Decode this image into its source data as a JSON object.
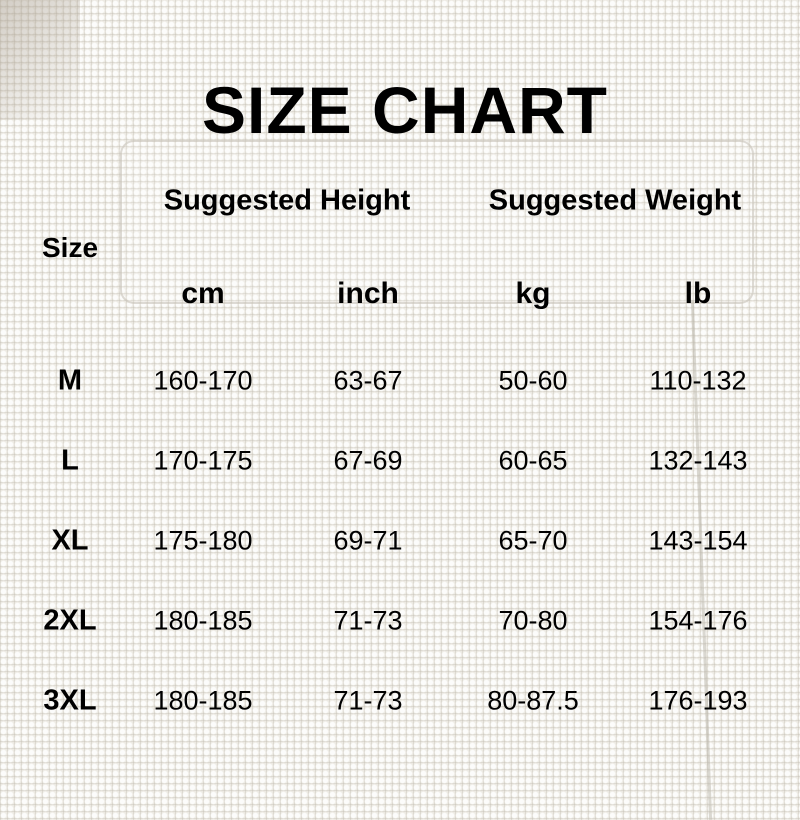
{
  "title": "SIZE CHART",
  "headers": {
    "size": "Size",
    "height_group": "Suggested Height",
    "weight_group": "Suggested Weight",
    "units": [
      "cm",
      "inch",
      "kg",
      "lb"
    ]
  },
  "rows": [
    {
      "size": "M",
      "cm": "160-170",
      "inch": "63-67",
      "kg": "50-60",
      "lb": "110-132"
    },
    {
      "size": "L",
      "cm": "170-175",
      "inch": "67-69",
      "kg": "60-65",
      "lb": "132-143"
    },
    {
      "size": "XL",
      "cm": "175-180",
      "inch": "69-71",
      "kg": "65-70",
      "lb": "143-154"
    },
    {
      "size": "2XL",
      "cm": "180-185",
      "inch": "71-73",
      "kg": "70-80",
      "lb": "154-176"
    },
    {
      "size": "3XL",
      "cm": "180-185",
      "inch": "71-73",
      "kg": "80-87.5",
      "lb": "176-193"
    }
  ]
}
